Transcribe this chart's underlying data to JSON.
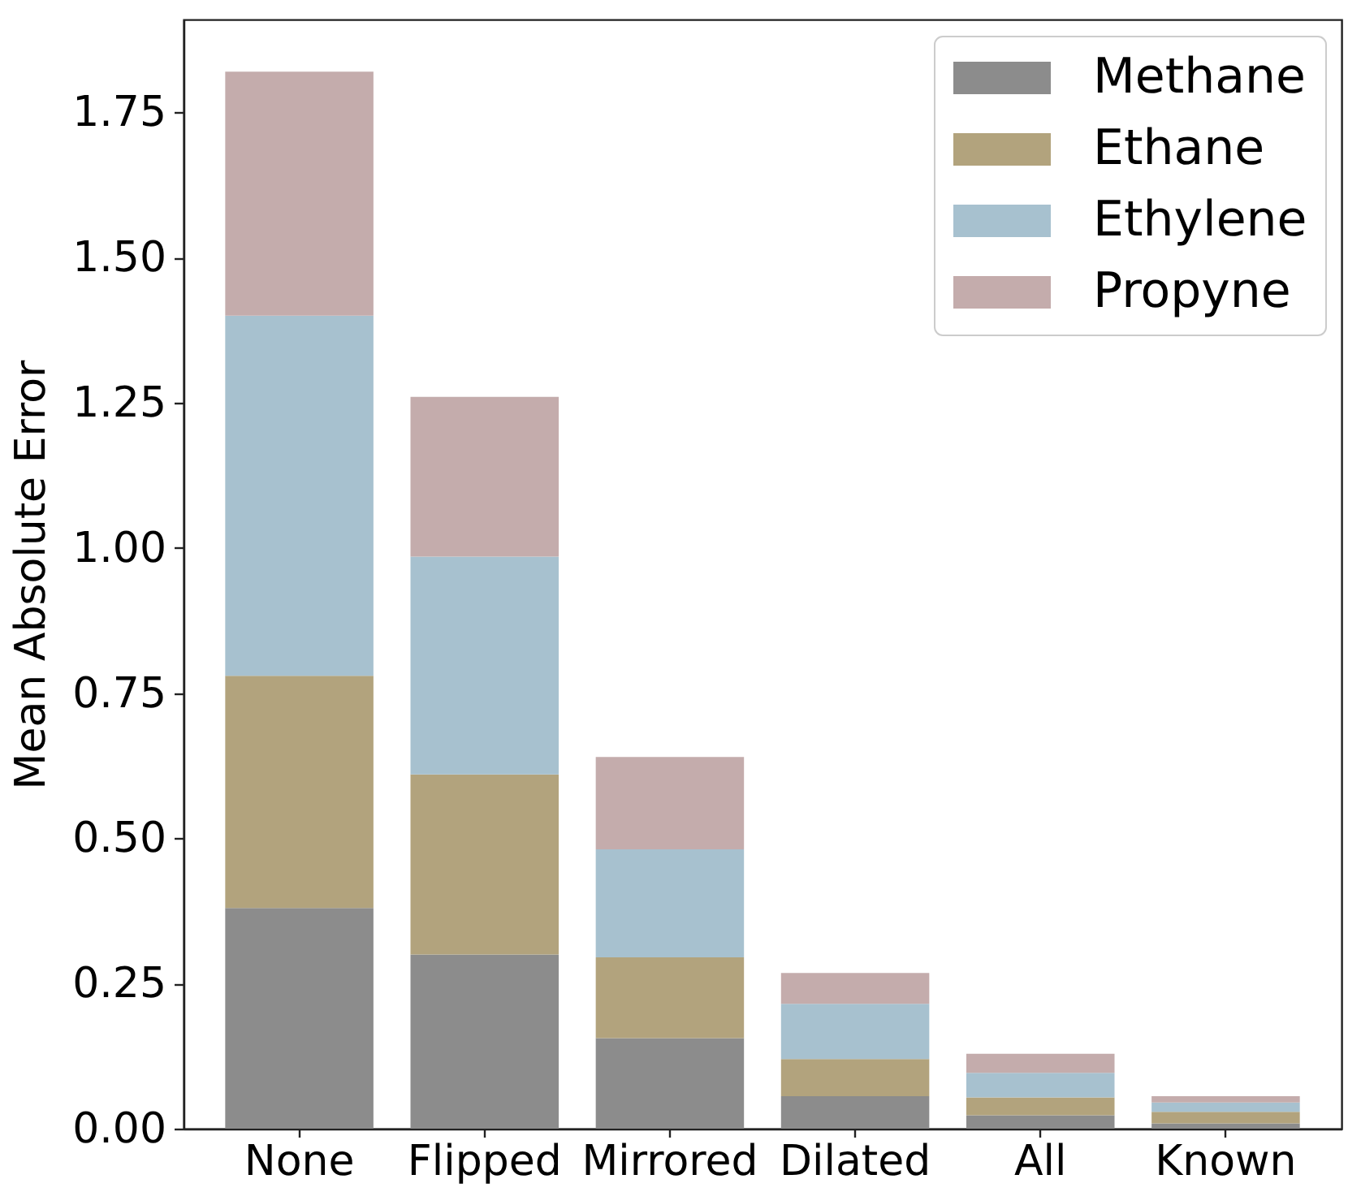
{
  "chart_data": {
    "type": "bar",
    "ylabel": "Mean Absolute Error",
    "categories": [
      "None",
      "Flipped",
      "Mirrored",
      "Dilated",
      "All",
      "Known"
    ],
    "series": [
      {
        "name": "Methane",
        "color": "#8c8c8c",
        "values": [
          0.38,
          0.3,
          0.156,
          0.056,
          0.023,
          0.009
        ]
      },
      {
        "name": "Ethane",
        "color": "#b2a37d",
        "values": [
          0.4,
          0.31,
          0.139,
          0.064,
          0.031,
          0.02
        ]
      },
      {
        "name": "Ethylene",
        "color": "#a7c1cf",
        "values": [
          0.62,
          0.375,
          0.186,
          0.095,
          0.042,
          0.016
        ]
      },
      {
        "name": "Propyne",
        "color": "#c4acac",
        "values": [
          0.42,
          0.275,
          0.159,
          0.053,
          0.033,
          0.011
        ]
      }
    ],
    "stacked": true,
    "ylim": [
      0,
      1.91
    ],
    "yticks": [
      {
        "value": 0,
        "label": "0.00"
      },
      0.25,
      {
        "value": 0.5,
        "label": "0.50"
      },
      0.75,
      {
        "value": 1,
        "label": "1.00"
      },
      1.25,
      {
        "value": 1.5,
        "label": "1.50"
      },
      1.75
    ],
    "grid": false,
    "legend": "top right"
  }
}
